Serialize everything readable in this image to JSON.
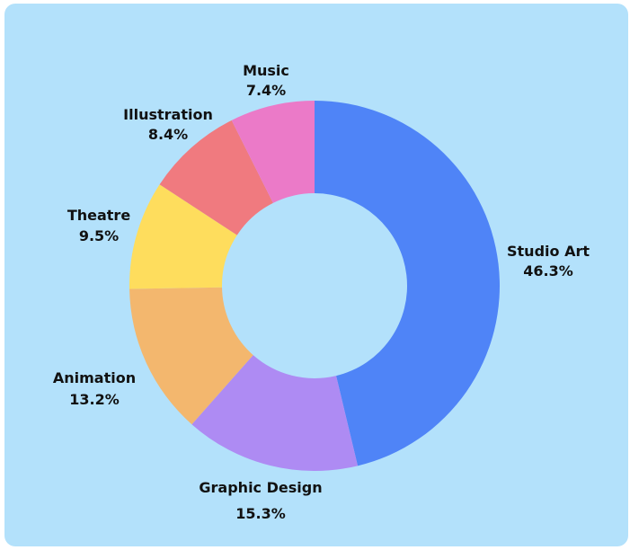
{
  "chart_data": {
    "type": "pie",
    "donut": true,
    "title": "",
    "legend": "none",
    "slices": [
      {
        "label": "Studio Art",
        "value": 46.3,
        "value_label": "46.3%",
        "color": "#4f84f7"
      },
      {
        "label": "Graphic Design",
        "value": 15.3,
        "value_label": "15.3%",
        "color": "#ae8bf3"
      },
      {
        "label": "Animation",
        "value": 13.2,
        "value_label": "13.2%",
        "color": "#f3b76e"
      },
      {
        "label": "Theatre",
        "value": 9.5,
        "value_label": "9.5%",
        "color": "#fedd5d"
      },
      {
        "label": "Illustration",
        "value": 8.4,
        "value_label": "8.4%",
        "color": "#f07a7f"
      },
      {
        "label": "Music",
        "value": 7.4,
        "value_label": "7.4%",
        "color": "#eb7ac8"
      }
    ]
  },
  "colors": {
    "background": "#b3e1fb"
  }
}
